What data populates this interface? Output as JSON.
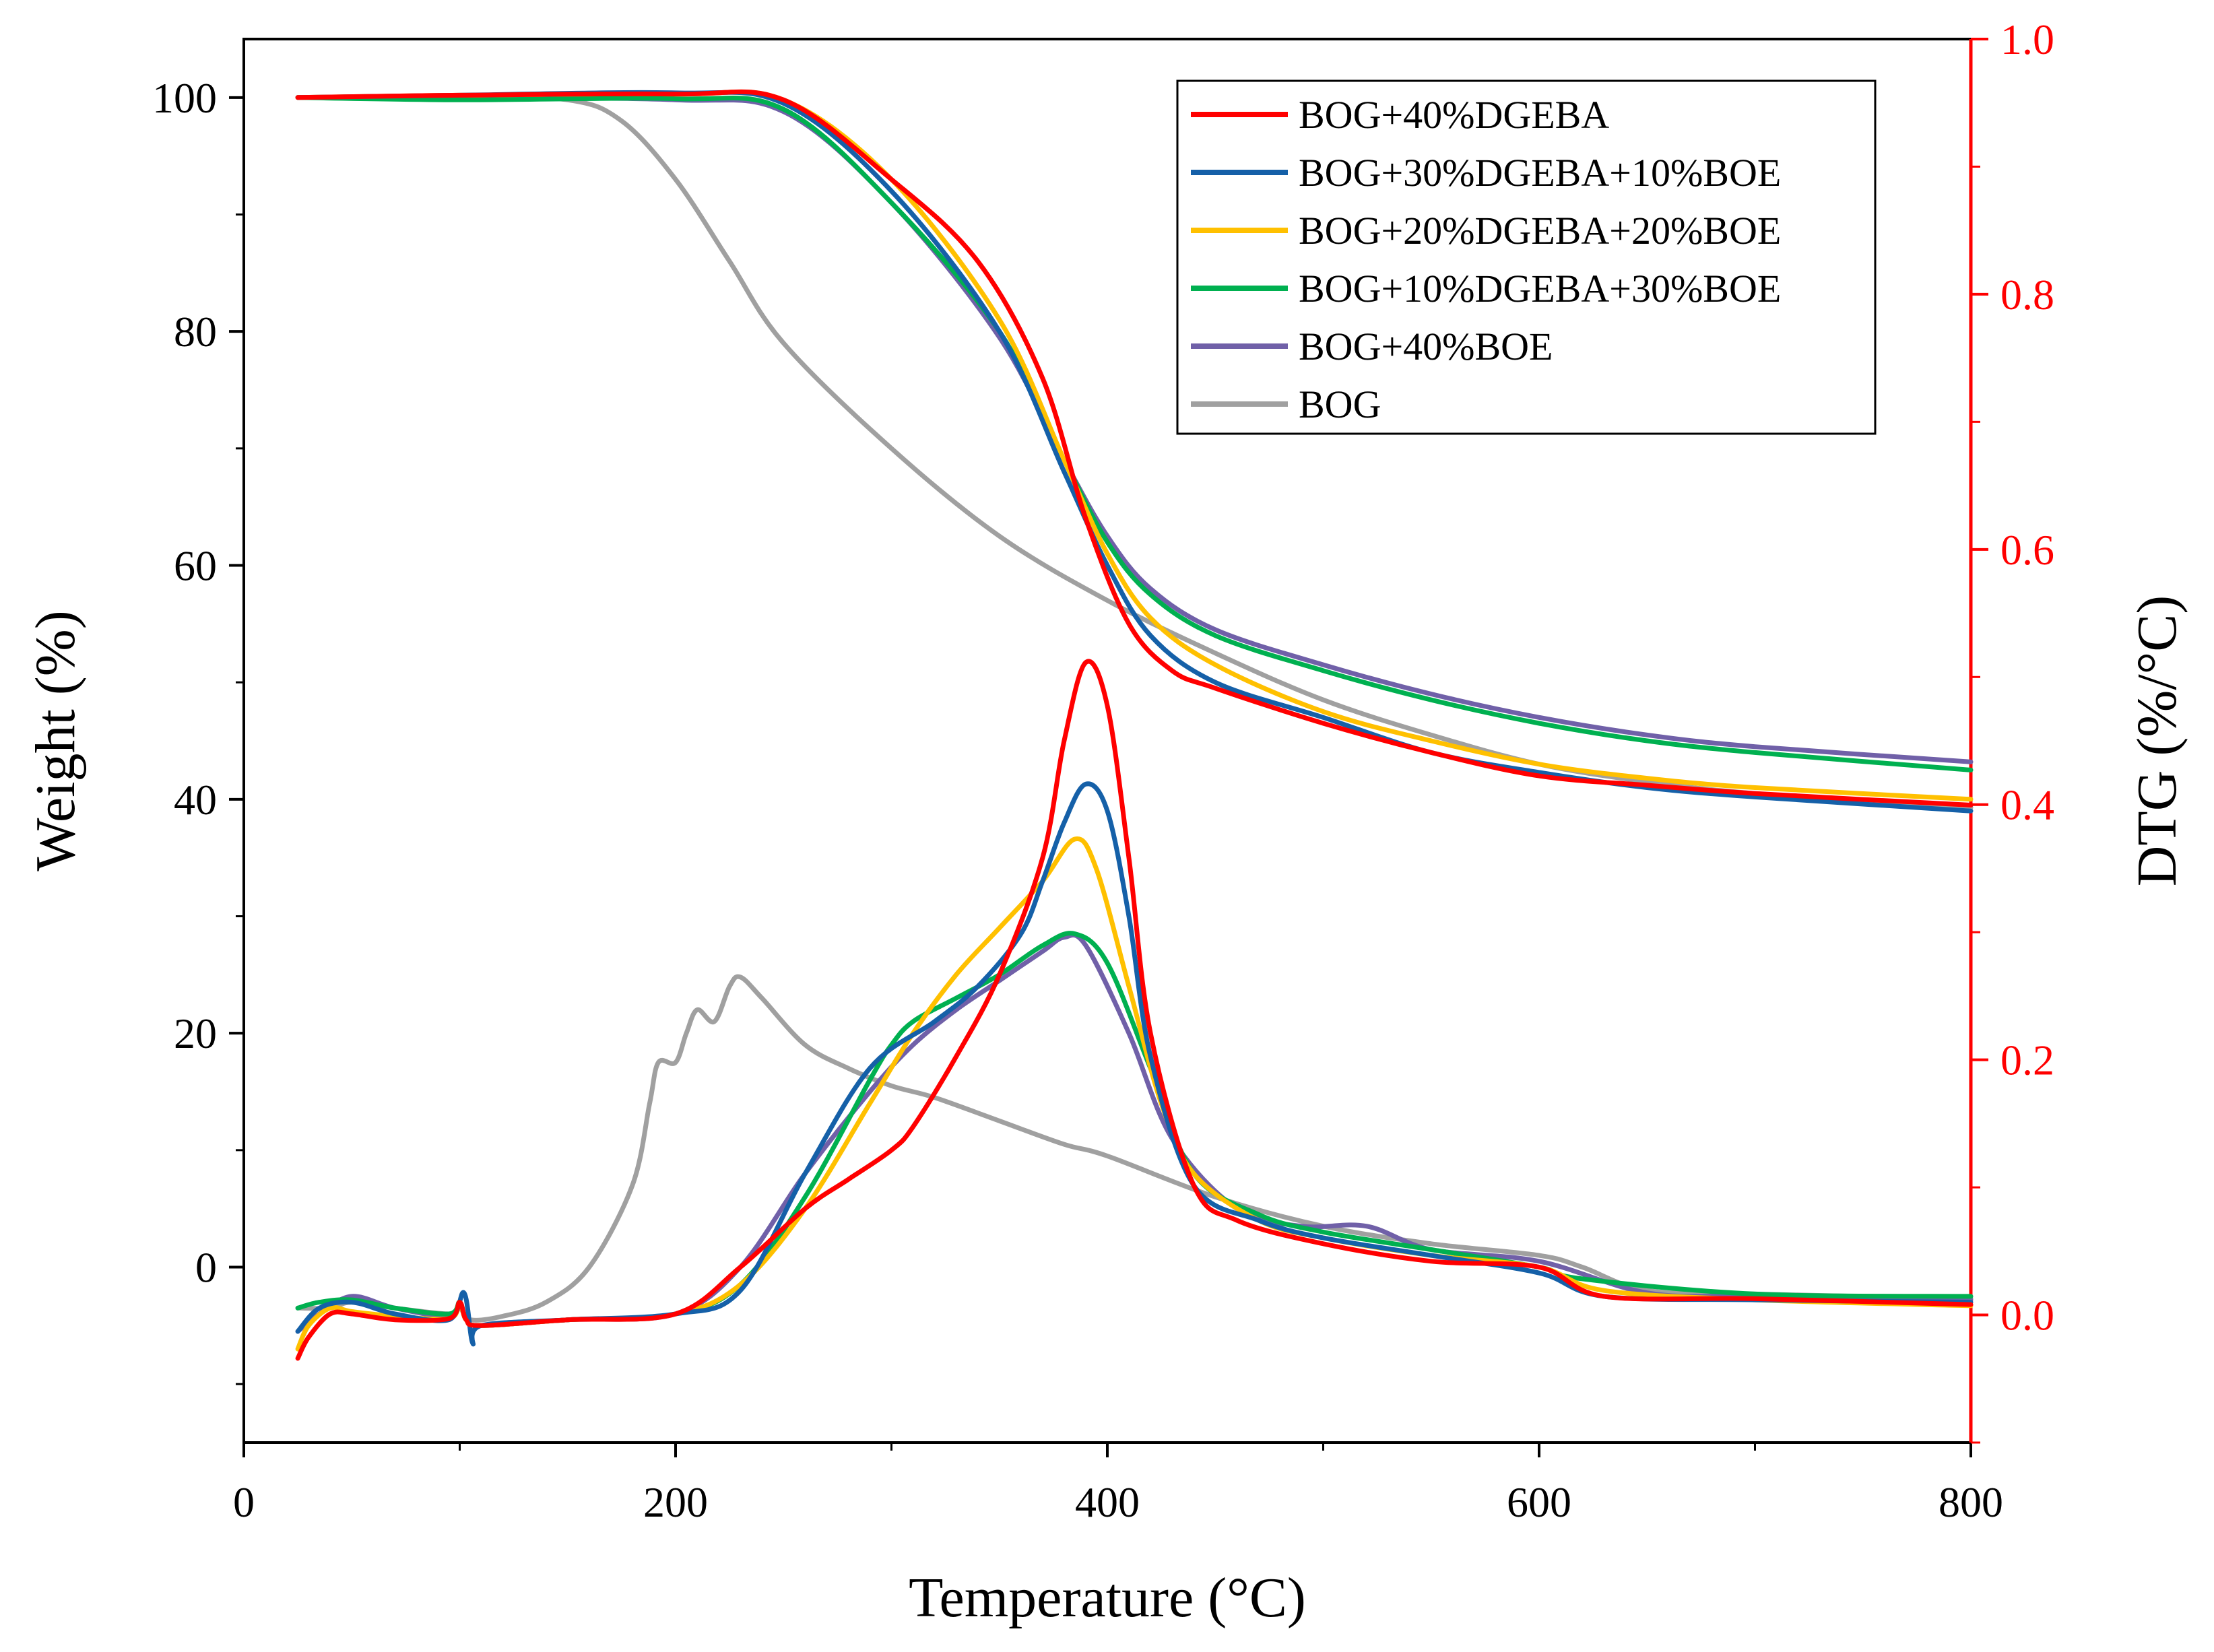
{
  "chart_data": {
    "type": "line",
    "xlabel": "Temperature (°C)",
    "ylabel_left": "Weight (%)",
    "ylabel_right": "DTG (%/°C)",
    "xlim": [
      0,
      800
    ],
    "ylim_left": [
      -15,
      105
    ],
    "ylim_right": [
      -0.1,
      1.0
    ],
    "x_ticks": [
      0,
      200,
      400,
      600,
      800
    ],
    "y_left_ticks": [
      0,
      20,
      40,
      60,
      80,
      100
    ],
    "y_right_ticks": [
      "0.0",
      "0.2",
      "0.4",
      "0.6",
      "0.8",
      "1.0"
    ],
    "right_axis_color": "#ff0000",
    "legend_position": "top-right",
    "series": [
      {
        "name": "BOG+40%DGEBA",
        "color": "#ff0000",
        "weight": [
          [
            25,
            100
          ],
          [
            100,
            100.2
          ],
          [
            200,
            100.3
          ],
          [
            250,
            99.8
          ],
          [
            300,
            93
          ],
          [
            340,
            86
          ],
          [
            370,
            76
          ],
          [
            390,
            64
          ],
          [
            410,
            55
          ],
          [
            430,
            51
          ],
          [
            450,
            49.5
          ],
          [
            500,
            46.5
          ],
          [
            550,
            44
          ],
          [
            600,
            42
          ],
          [
            650,
            41.2
          ],
          [
            700,
            40.5
          ],
          [
            800,
            39.5
          ]
        ],
        "dtg_left_units": [
          [
            25,
            -7.8
          ],
          [
            30,
            -6
          ],
          [
            40,
            -4
          ],
          [
            50,
            -4
          ],
          [
            70,
            -4.5
          ],
          [
            95,
            -4.4
          ],
          [
            100,
            -3
          ],
          [
            103,
            -4.5
          ],
          [
            110,
            -5
          ],
          [
            150,
            -4.5
          ],
          [
            200,
            -4
          ],
          [
            230,
            0
          ],
          [
            260,
            5
          ],
          [
            280,
            7.5
          ],
          [
            300,
            10
          ],
          [
            310,
            12
          ],
          [
            330,
            18
          ],
          [
            350,
            25
          ],
          [
            370,
            35
          ],
          [
            380,
            45
          ],
          [
            390,
            51.7
          ],
          [
            400,
            48
          ],
          [
            410,
            35
          ],
          [
            420,
            20
          ],
          [
            440,
            7
          ],
          [
            460,
            4
          ],
          [
            500,
            2
          ],
          [
            550,
            0.5
          ],
          [
            600,
            0
          ],
          [
            630,
            -2.5
          ],
          [
            700,
            -2.7
          ],
          [
            800,
            -3.2
          ]
        ]
      },
      {
        "name": "BOG+30%DGEBA+10%BOE",
        "color": "#1560a8",
        "weight": [
          [
            25,
            100
          ],
          [
            100,
            100.2
          ],
          [
            200,
            100.4
          ],
          [
            250,
            99.5
          ],
          [
            300,
            92
          ],
          [
            350,
            80
          ],
          [
            380,
            68
          ],
          [
            400,
            60
          ],
          [
            420,
            54
          ],
          [
            450,
            50
          ],
          [
            500,
            47
          ],
          [
            550,
            44
          ],
          [
            600,
            42.3
          ],
          [
            650,
            41
          ],
          [
            700,
            40.2
          ],
          [
            800,
            39
          ]
        ],
        "dtg_left_units": [
          [
            25,
            -5.5
          ],
          [
            35,
            -3.5
          ],
          [
            50,
            -3
          ],
          [
            70,
            -4
          ],
          [
            95,
            -4.5
          ],
          [
            102,
            -2.2
          ],
          [
            106,
            -6.5
          ],
          [
            110,
            -5
          ],
          [
            150,
            -4.5
          ],
          [
            200,
            -4
          ],
          [
            230,
            -2
          ],
          [
            260,
            8
          ],
          [
            290,
            17
          ],
          [
            320,
            21
          ],
          [
            340,
            24
          ],
          [
            360,
            28.5
          ],
          [
            370,
            33
          ],
          [
            380,
            38
          ],
          [
            390,
            41.3
          ],
          [
            400,
            39
          ],
          [
            410,
            30
          ],
          [
            420,
            18
          ],
          [
            440,
            7
          ],
          [
            470,
            4
          ],
          [
            500,
            2.5
          ],
          [
            550,
            1
          ],
          [
            600,
            -0.5
          ],
          [
            630,
            -2.5
          ],
          [
            700,
            -2.8
          ],
          [
            800,
            -3
          ]
        ]
      },
      {
        "name": "BOG+20%DGEBA+20%BOE",
        "color": "#ffc000",
        "weight": [
          [
            25,
            100
          ],
          [
            100,
            100.2
          ],
          [
            200,
            100.3
          ],
          [
            250,
            99.8
          ],
          [
            300,
            93
          ],
          [
            350,
            81
          ],
          [
            380,
            69
          ],
          [
            400,
            61
          ],
          [
            420,
            55.5
          ],
          [
            450,
            51.5
          ],
          [
            500,
            47.5
          ],
          [
            550,
            45
          ],
          [
            600,
            43
          ],
          [
            650,
            41.8
          ],
          [
            700,
            41
          ],
          [
            800,
            40
          ]
        ],
        "dtg_left_units": [
          [
            25,
            -7
          ],
          [
            30,
            -5
          ],
          [
            40,
            -3.5
          ],
          [
            50,
            -3.8
          ],
          [
            70,
            -4.2
          ],
          [
            95,
            -4.4
          ],
          [
            100,
            -3.2
          ],
          [
            103,
            -4.5
          ],
          [
            110,
            -5
          ],
          [
            150,
            -4.5
          ],
          [
            200,
            -4
          ],
          [
            230,
            -1.5
          ],
          [
            260,
            5
          ],
          [
            290,
            14
          ],
          [
            310,
            20
          ],
          [
            330,
            25
          ],
          [
            350,
            29
          ],
          [
            370,
            33
          ],
          [
            385,
            36.6
          ],
          [
            395,
            34
          ],
          [
            410,
            24
          ],
          [
            425,
            14
          ],
          [
            440,
            8
          ],
          [
            470,
            4
          ],
          [
            500,
            2.5
          ],
          [
            550,
            1
          ],
          [
            600,
            0
          ],
          [
            630,
            -2
          ],
          [
            700,
            -2.8
          ],
          [
            800,
            -3.3
          ]
        ]
      },
      {
        "name": "BOG+10%DGEBA+30%BOE",
        "color": "#00b050",
        "weight": [
          [
            25,
            100
          ],
          [
            100,
            99.8
          ],
          [
            200,
            99.9
          ],
          [
            250,
            99
          ],
          [
            300,
            91
          ],
          [
            350,
            80
          ],
          [
            380,
            69
          ],
          [
            400,
            62
          ],
          [
            420,
            57.5
          ],
          [
            450,
            54
          ],
          [
            500,
            51
          ],
          [
            550,
            48.5
          ],
          [
            600,
            46.5
          ],
          [
            650,
            45
          ],
          [
            700,
            44
          ],
          [
            800,
            42.5
          ]
        ],
        "dtg_left_units": [
          [
            25,
            -3.5
          ],
          [
            35,
            -3
          ],
          [
            50,
            -2.8
          ],
          [
            70,
            -3.5
          ],
          [
            95,
            -4
          ],
          [
            100,
            -3
          ],
          [
            103,
            -4.5
          ],
          [
            110,
            -5
          ],
          [
            150,
            -4.5
          ],
          [
            200,
            -4
          ],
          [
            230,
            -1.5
          ],
          [
            260,
            6
          ],
          [
            290,
            16
          ],
          [
            300,
            19
          ],
          [
            310,
            21
          ],
          [
            330,
            23
          ],
          [
            350,
            25
          ],
          [
            370,
            27.5
          ],
          [
            385,
            28.5
          ],
          [
            400,
            26
          ],
          [
            420,
            17
          ],
          [
            440,
            8
          ],
          [
            470,
            4.5
          ],
          [
            500,
            3
          ],
          [
            550,
            1.5
          ],
          [
            600,
            0
          ],
          [
            620,
            -1
          ],
          [
            700,
            -2.3
          ],
          [
            800,
            -2.5
          ]
        ]
      },
      {
        "name": "BOG+40%BOE",
        "color": "#7060a8",
        "weight": [
          [
            25,
            100
          ],
          [
            100,
            100
          ],
          [
            200,
            99.8
          ],
          [
            250,
            98.8
          ],
          [
            300,
            91
          ],
          [
            350,
            79.5
          ],
          [
            380,
            69
          ],
          [
            400,
            62.5
          ],
          [
            420,
            58
          ],
          [
            450,
            54.5
          ],
          [
            500,
            51.5
          ],
          [
            550,
            49
          ],
          [
            600,
            47
          ],
          [
            650,
            45.5
          ],
          [
            700,
            44.5
          ],
          [
            800,
            43.2
          ]
        ],
        "dtg_left_units": [
          [
            25,
            -5.5
          ],
          [
            35,
            -4
          ],
          [
            50,
            -2.5
          ],
          [
            70,
            -3.5
          ],
          [
            95,
            -4.2
          ],
          [
            100,
            -3
          ],
          [
            103,
            -4.5
          ],
          [
            110,
            -5
          ],
          [
            150,
            -4.5
          ],
          [
            200,
            -4
          ],
          [
            230,
            0
          ],
          [
            260,
            8
          ],
          [
            290,
            15
          ],
          [
            310,
            19
          ],
          [
            330,
            22
          ],
          [
            350,
            24.5
          ],
          [
            370,
            27
          ],
          [
            380,
            28.2
          ],
          [
            390,
            27.5
          ],
          [
            410,
            20
          ],
          [
            430,
            11
          ],
          [
            460,
            5
          ],
          [
            490,
            3.5
          ],
          [
            520,
            3.5
          ],
          [
            550,
            1.5
          ],
          [
            600,
            0.5
          ],
          [
            650,
            -2.2
          ],
          [
            700,
            -2.5
          ],
          [
            800,
            -2.8
          ]
        ]
      },
      {
        "name": "BOG",
        "color": "#a0a0a0",
        "weight": [
          [
            25,
            100
          ],
          [
            100,
            100
          ],
          [
            150,
            99.8
          ],
          [
            175,
            98
          ],
          [
            200,
            93
          ],
          [
            225,
            86
          ],
          [
            250,
            79
          ],
          [
            300,
            70
          ],
          [
            350,
            62.5
          ],
          [
            400,
            57
          ],
          [
            450,
            52.5
          ],
          [
            500,
            48.5
          ],
          [
            550,
            45.5
          ],
          [
            600,
            43
          ],
          [
            650,
            41.5
          ],
          [
            700,
            40.5
          ],
          [
            800,
            39.3
          ]
        ],
        "dtg_left_units": [
          [
            25,
            -3.5
          ],
          [
            40,
            -3.5
          ],
          [
            50,
            -3
          ],
          [
            70,
            -3.5
          ],
          [
            95,
            -4
          ],
          [
            100,
            -3.5
          ],
          [
            105,
            -4.5
          ],
          [
            120,
            -4.2
          ],
          [
            140,
            -3
          ],
          [
            160,
            0
          ],
          [
            180,
            7
          ],
          [
            188,
            14
          ],
          [
            192,
            17.5
          ],
          [
            200,
            17.5
          ],
          [
            205,
            20
          ],
          [
            210,
            22
          ],
          [
            218,
            21
          ],
          [
            225,
            24
          ],
          [
            230,
            24.8
          ],
          [
            240,
            23
          ],
          [
            260,
            19
          ],
          [
            280,
            17
          ],
          [
            300,
            15.5
          ],
          [
            320,
            14.5
          ],
          [
            350,
            12.5
          ],
          [
            380,
            10.5
          ],
          [
            400,
            9.5
          ],
          [
            450,
            6
          ],
          [
            500,
            3.5
          ],
          [
            550,
            2
          ],
          [
            600,
            1
          ],
          [
            620,
            0
          ],
          [
            650,
            -2
          ],
          [
            700,
            -2.3
          ],
          [
            800,
            -2.7
          ]
        ]
      }
    ]
  }
}
